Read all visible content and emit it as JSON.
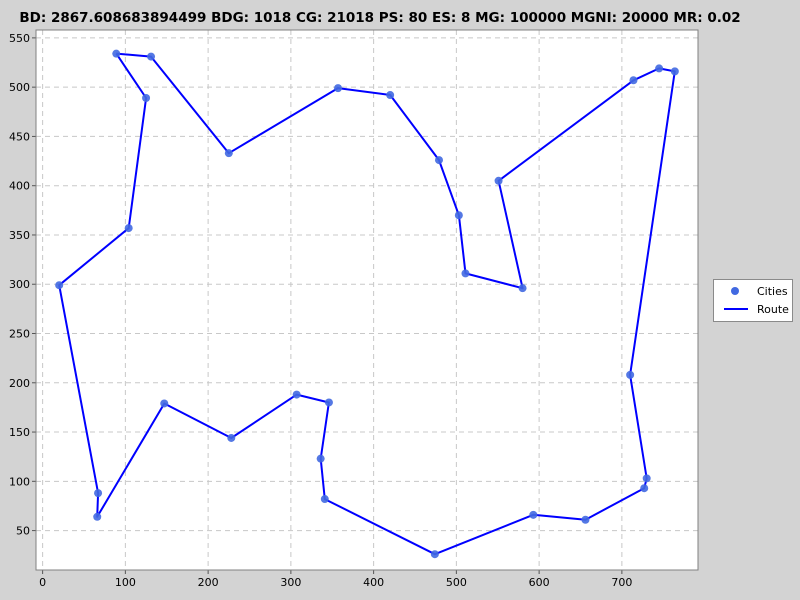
{
  "header": {
    "title": "BD: 2867.608683894499    BDG: 1018    CG: 21018    PS: 80    ES: 8    MG: 100000    MGNI: 20000    MR: 0.02"
  },
  "colors": {
    "background": "#d3d3d3",
    "plot_background": "#ffffff",
    "city_marker": "#4169e1",
    "route_line": "#0000ff",
    "grid": "#c8c8c8"
  },
  "chart_data": {
    "type": "line",
    "grid": true,
    "legend_placement": "right",
    "xlim": [
      -8,
      792
    ],
    "ylim": [
      10,
      558
    ],
    "x_ticks": [
      0,
      100,
      200,
      300,
      400,
      500,
      600,
      700
    ],
    "y_ticks": [
      50,
      100,
      150,
      200,
      250,
      300,
      350,
      400,
      450,
      500,
      550
    ],
    "series": [
      {
        "name": "Cities",
        "mode": "markers",
        "points": [
          [
            89,
            534
          ],
          [
            131,
            531
          ],
          [
            125,
            489
          ],
          [
            104,
            357
          ],
          [
            20,
            299
          ],
          [
            67,
            88
          ],
          [
            66,
            64
          ],
          [
            147,
            179
          ],
          [
            228,
            144
          ],
          [
            307,
            188
          ],
          [
            346,
            180
          ],
          [
            336,
            123
          ],
          [
            341,
            82
          ],
          [
            474,
            26
          ],
          [
            593,
            66
          ],
          [
            656,
            61
          ],
          [
            727,
            93
          ],
          [
            730,
            103
          ],
          [
            710,
            208
          ],
          [
            764,
            516
          ],
          [
            745,
            519
          ],
          [
            714,
            507
          ],
          [
            551,
            405
          ],
          [
            580,
            296
          ],
          [
            511,
            311
          ],
          [
            503,
            370
          ],
          [
            479,
            426
          ],
          [
            420,
            492
          ],
          [
            357,
            499
          ],
          [
            225,
            433
          ]
        ]
      },
      {
        "name": "Route",
        "mode": "line",
        "points": [
          [
            89,
            534
          ],
          [
            131,
            531
          ],
          [
            225,
            433
          ],
          [
            357,
            499
          ],
          [
            420,
            492
          ],
          [
            479,
            426
          ],
          [
            503,
            370
          ],
          [
            511,
            311
          ],
          [
            580,
            296
          ],
          [
            551,
            405
          ],
          [
            714,
            507
          ],
          [
            745,
            519
          ],
          [
            764,
            516
          ],
          [
            710,
            208
          ],
          [
            730,
            103
          ],
          [
            727,
            93
          ],
          [
            656,
            61
          ],
          [
            593,
            66
          ],
          [
            474,
            26
          ],
          [
            341,
            82
          ],
          [
            336,
            123
          ],
          [
            346,
            180
          ],
          [
            307,
            188
          ],
          [
            228,
            144
          ],
          [
            147,
            179
          ],
          [
            66,
            64
          ],
          [
            67,
            88
          ],
          [
            20,
            299
          ],
          [
            104,
            357
          ],
          [
            125,
            489
          ],
          [
            89,
            534
          ]
        ]
      }
    ]
  }
}
